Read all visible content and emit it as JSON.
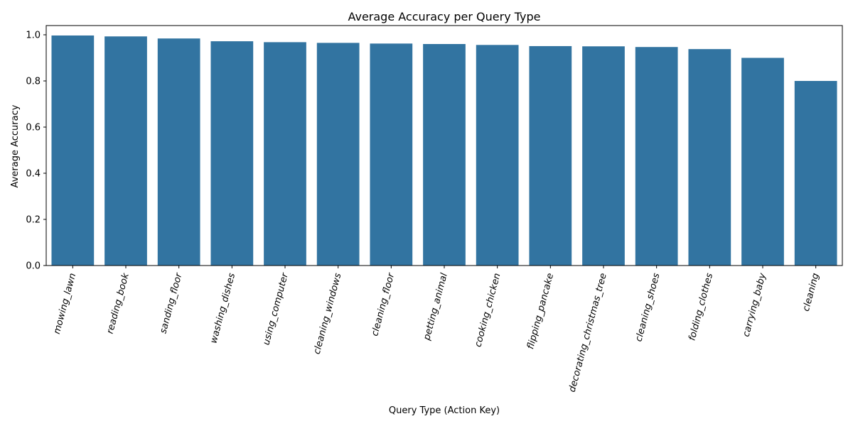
{
  "chart_data": {
    "type": "bar",
    "title": "Average Accuracy per Query Type",
    "xlabel": "Query Type (Action Key)",
    "ylabel": "Average Accuracy",
    "ylim": [
      0,
      1.04
    ],
    "yticks": [
      "0.0",
      "0.2",
      "0.4",
      "0.6",
      "0.8",
      "1.0"
    ],
    "grid": false,
    "bar_color": "#3274a1",
    "categories": [
      "mowing_lawn",
      "reading_book",
      "sanding_floor",
      "washing_dishes",
      "using_computer",
      "cleaning_windows",
      "cleaning_floor",
      "petting_animal",
      "cooking_chicken",
      "flipping_pancake",
      "decorating_christmas_tree",
      "cleaning_shoes",
      "folding_clothes",
      "carrying_baby",
      "cleaning"
    ],
    "values": [
      0.997,
      0.993,
      0.984,
      0.972,
      0.968,
      0.965,
      0.962,
      0.96,
      0.956,
      0.951,
      0.95,
      0.947,
      0.938,
      0.9,
      0.8
    ]
  }
}
